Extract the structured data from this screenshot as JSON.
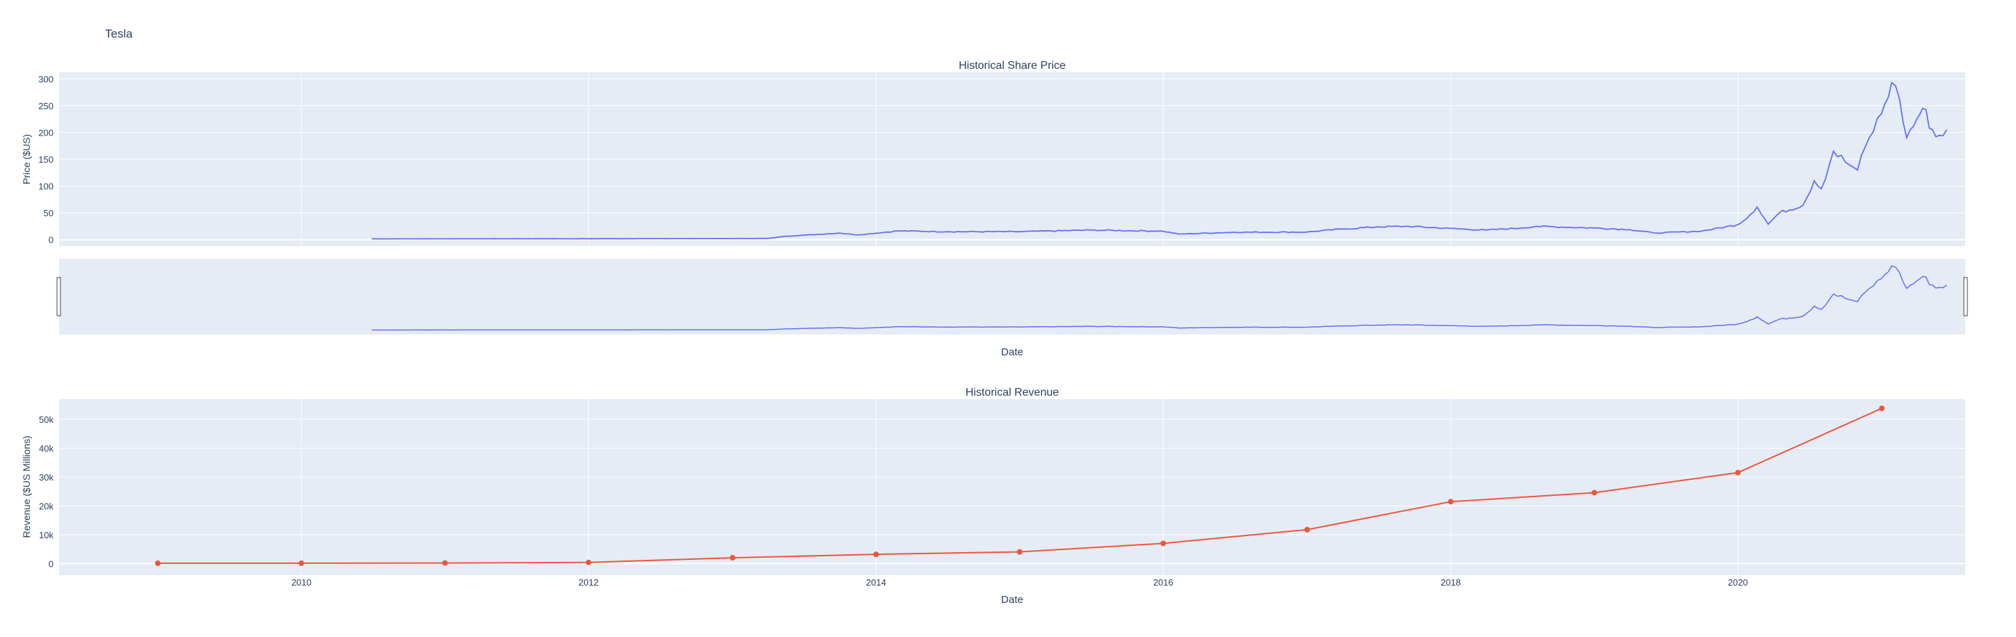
{
  "figure": {
    "title": "Tesla",
    "colors": {
      "plot_bg": "#E5ECF6",
      "grid": "#ffffff",
      "text": "#2a3f5f",
      "price_line": "#636efa",
      "revenue_line": "#EF553B"
    }
  },
  "x_axis": {
    "range": [
      "2008-04-25",
      "2021-08-01"
    ],
    "ticks": [
      "2010",
      "2012",
      "2014",
      "2016",
      "2018",
      "2020"
    ],
    "title": "Date"
  },
  "chart_data": [
    {
      "type": "line",
      "title": "Historical Share Price",
      "xlabel": "Date",
      "ylabel": "Price ($US)",
      "ylim": [
        -12,
        312
      ],
      "yticks": [
        "0",
        "50",
        "100",
        "150",
        "200",
        "250",
        "300"
      ],
      "grid": true,
      "rangeslider": true,
      "series": [
        {
          "x": [
            "2010-06-29",
            "2011-01-01",
            "2012-01-01",
            "2013-01-01",
            "2013-04-01",
            "2013-05-15",
            "2013-07-01",
            "2013-09-30",
            "2013-11-15",
            "2014-02-26",
            "2014-06-30",
            "2014-12-31",
            "2015-06-30",
            "2015-12-31",
            "2016-02-10",
            "2016-06-30",
            "2016-12-31",
            "2017-04-01",
            "2017-06-30",
            "2017-09-15",
            "2017-12-31",
            "2018-03-31",
            "2018-06-30",
            "2018-08-07",
            "2018-12-31",
            "2019-03-31",
            "2019-06-03",
            "2019-09-30",
            "2019-12-31",
            "2020-01-15",
            "2020-02-19",
            "2020-03-18",
            "2020-04-15",
            "2020-06-15",
            "2020-07-13",
            "2020-07-31",
            "2020-08-31",
            "2020-09-30",
            "2020-10-31",
            "2020-11-30",
            "2020-12-31",
            "2021-01-26",
            "2021-02-15",
            "2021-03-05",
            "2021-03-31",
            "2021-04-15",
            "2021-05-18",
            "2021-06-15"
          ],
          "y": [
            1.6,
            1.8,
            1.9,
            2.3,
            2.5,
            6.5,
            8.5,
            12.5,
            9.0,
            16.5,
            15.0,
            15.0,
            18.0,
            16.0,
            10.5,
            14.0,
            14.3,
            20.0,
            24.0,
            25.0,
            21.0,
            18.0,
            22.0,
            25.0,
            22.0,
            19.0,
            12.5,
            16.0,
            28.0,
            35.0,
            61.0,
            29.0,
            50.0,
            65.0,
            110.0,
            95.0,
            165.0,
            145.0,
            130.0,
            190.0,
            235.0,
            293.0,
            262.0,
            190.0,
            225.0,
            245.0,
            192.0,
            205.0
          ]
        }
      ]
    },
    {
      "type": "line",
      "title": "Historical Revenue",
      "xlabel": "Date",
      "ylabel": "Revenue ($US Millions)",
      "ylim": [
        -4000,
        57000
      ],
      "yticks": [
        "0",
        "10k",
        "20k",
        "30k",
        "40k",
        "50k"
      ],
      "grid": true,
      "markers": true,
      "series": [
        {
          "x": [
            "2009-01-01",
            "2010-01-01",
            "2011-01-01",
            "2012-01-01",
            "2013-01-01",
            "2014-01-01",
            "2015-01-01",
            "2016-01-01",
            "2017-01-01",
            "2018-01-01",
            "2019-01-01",
            "2020-01-01",
            "2021-01-01"
          ],
          "y": [
            112,
            117,
            204,
            413,
            2013,
            3198,
            4046,
            7000,
            11759,
            21461,
            24578,
            31536,
            53823
          ]
        }
      ]
    }
  ]
}
